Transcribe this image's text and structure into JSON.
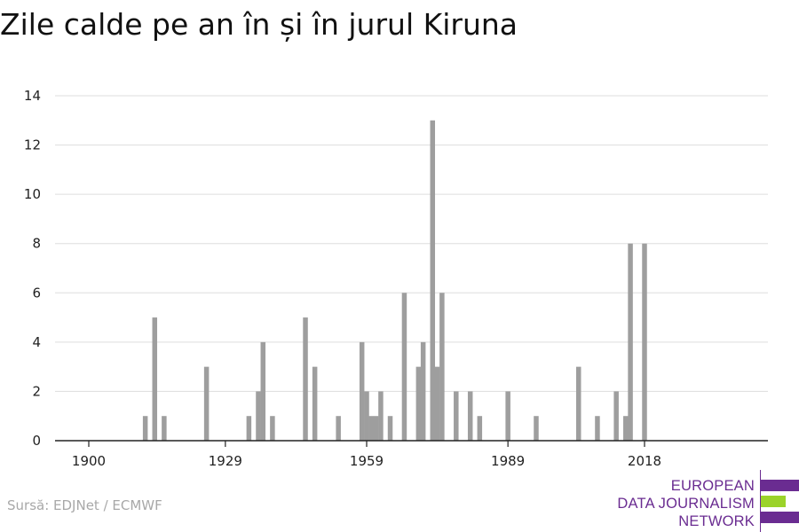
{
  "title": "Zile calde pe an în și în jurul Kiruna",
  "source": "Sursă: EDJNet / ECMWF",
  "logo": {
    "lines": [
      "EUROPEAN",
      "DATA JOURNALISM",
      "NETWORK"
    ]
  },
  "colors": {
    "bar": "#9e9e9e",
    "grid": "#dddddd",
    "axis": "#222222",
    "logo_purple": "#6a2c91",
    "logo_green": "#9bd32a"
  },
  "chart_data": {
    "type": "bar",
    "title": "Zile calde pe an în și în jurul Kiruna",
    "xlabel": "",
    "ylabel": "",
    "x_ticks": [
      1900,
      1929,
      1959,
      1989,
      2018
    ],
    "y_ticks": [
      0,
      2,
      4,
      6,
      8,
      10,
      12,
      14
    ],
    "xlim": [
      1900,
      2018
    ],
    "ylim": [
      0,
      14
    ],
    "grid": true,
    "legend": "none",
    "x": [
      1912,
      1914,
      1916,
      1925,
      1934,
      1936,
      1937,
      1939,
      1946,
      1948,
      1953,
      1958,
      1959,
      1960,
      1961,
      1962,
      1964,
      1967,
      1970,
      1971,
      1973,
      1974,
      1975,
      1978,
      1981,
      1983,
      1989,
      1995,
      2004,
      2008,
      2012,
      2014,
      2015,
      2018
    ],
    "values": [
      1,
      5,
      1,
      3,
      1,
      2,
      4,
      1,
      5,
      3,
      1,
      4,
      2,
      1,
      1,
      2,
      1,
      6,
      3,
      4,
      13,
      3,
      6,
      2,
      2,
      1,
      2,
      1,
      3,
      1,
      2,
      1,
      8,
      8
    ]
  }
}
